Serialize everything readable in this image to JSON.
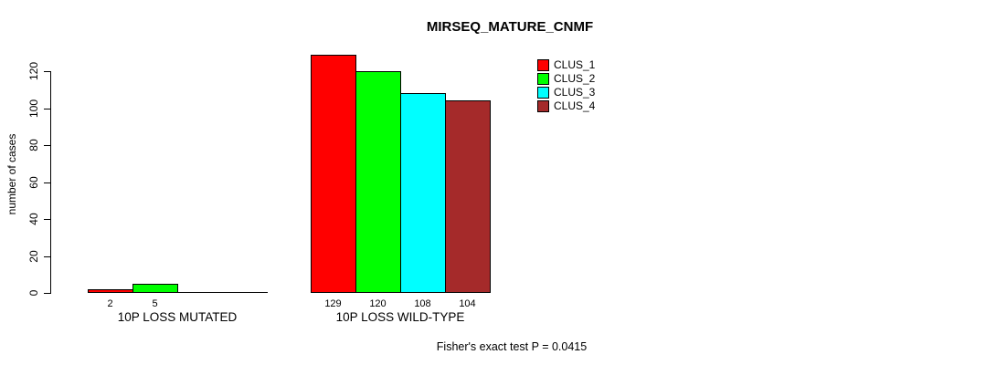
{
  "title": "MIRSEQ_MATURE_CNMF",
  "chart_data": {
    "type": "bar",
    "title": "MIRSEQ_MATURE_CNMF",
    "xlabel": "",
    "ylabel": "number of cases",
    "categories": [
      "10P LOSS MUTATED",
      "10P LOSS WILD-TYPE"
    ],
    "series": [
      {
        "name": "CLUS_1",
        "color": "#ff0000",
        "values": [
          2,
          129
        ]
      },
      {
        "name": "CLUS_2",
        "color": "#00ff00",
        "values": [
          5,
          120
        ]
      },
      {
        "name": "CLUS_3",
        "color": "#00ffff",
        "values": [
          0,
          108
        ]
      },
      {
        "name": "CLUS_4",
        "color": "#a52a2a",
        "values": [
          0,
          104
        ]
      }
    ],
    "yticks": [
      0,
      20,
      40,
      60,
      80,
      100,
      120
    ],
    "ylim": [
      0,
      135
    ],
    "grid": false,
    "legend_position": "top-right",
    "bar_value_labels": true,
    "zero_bars_drawn_as_baseline": true,
    "annotation": "Fisher's exact test P = 0.0415"
  },
  "colors": {
    "background": "#ffffff",
    "axis": "#000000",
    "bar_border": "#000000"
  }
}
